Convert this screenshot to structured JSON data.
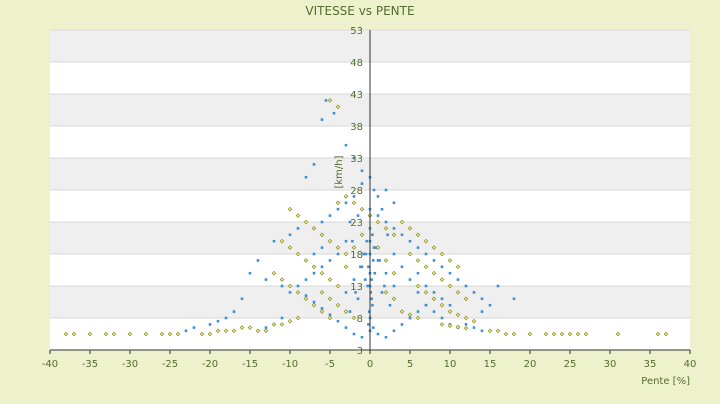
{
  "chart_data": {
    "type": "scatter",
    "title": "VITESSE vs PENTE",
    "xlabel": "Pente [%]",
    "ylabel": "[km/h]",
    "xlim": [
      -40,
      40
    ],
    "ylim": [
      3,
      53
    ],
    "x_ticks": [
      -40,
      -35,
      -30,
      -25,
      -20,
      -15,
      -10,
      -5,
      0,
      5,
      10,
      15,
      20,
      25,
      30,
      35,
      40
    ],
    "y_ticks": [
      3,
      8,
      13,
      18,
      23,
      28,
      33,
      38,
      43,
      48,
      53
    ],
    "grid": true,
    "legend": "none",
    "colors": {
      "background": "#eef2cc",
      "band_light": "#ffffff",
      "band_dark": "#efefef",
      "series_blue": "#3b8fd6",
      "series_olive": "#8a8a1a",
      "text": "#556b2f",
      "axis": "#333333"
    },
    "series": [
      {
        "color": "#3b8fd6",
        "marker": "dot",
        "points": [
          [
            -5.5,
            42
          ],
          [
            -4.5,
            40
          ],
          [
            -6,
            39
          ],
          [
            -3,
            35
          ],
          [
            -2,
            33
          ],
          [
            -1,
            31
          ],
          [
            0,
            30
          ],
          [
            -7,
            32
          ],
          [
            -8,
            30
          ],
          [
            -1,
            29
          ],
          [
            0.5,
            28
          ],
          [
            1,
            27
          ],
          [
            -2,
            27
          ],
          [
            -3,
            26
          ],
          [
            -4,
            25
          ],
          [
            -5,
            24
          ],
          [
            -6,
            23
          ],
          [
            -7,
            22
          ],
          [
            -9,
            22
          ],
          [
            -10,
            21
          ],
          [
            -12,
            20
          ],
          [
            -14,
            17
          ],
          [
            -15,
            15
          ],
          [
            -13,
            14
          ],
          [
            -11,
            13
          ],
          [
            -16,
            11
          ],
          [
            -17,
            9
          ],
          [
            -18,
            8
          ],
          [
            -19,
            7.5
          ],
          [
            -20,
            7
          ],
          [
            -22,
            6.5
          ],
          [
            -23,
            6
          ],
          [
            0,
            25
          ],
          [
            1,
            24
          ],
          [
            2,
            23
          ],
          [
            3,
            22
          ],
          [
            4,
            21
          ],
          [
            5,
            20
          ],
          [
            6,
            19
          ],
          [
            7,
            18
          ],
          [
            8,
            17
          ],
          [
            9,
            16
          ],
          [
            10,
            15
          ],
          [
            11,
            14
          ],
          [
            12,
            13
          ],
          [
            13,
            12
          ],
          [
            14,
            11
          ],
          [
            15,
            10
          ],
          [
            16,
            13
          ],
          [
            18,
            11
          ],
          [
            14,
            9
          ],
          [
            0,
            20
          ],
          [
            0.5,
            19
          ],
          [
            -0.5,
            18
          ],
          [
            1,
            17
          ],
          [
            -1,
            16
          ],
          [
            2,
            15
          ],
          [
            -2,
            14
          ],
          [
            3,
            13
          ],
          [
            -3,
            12
          ],
          [
            0,
            15
          ],
          [
            0.2,
            14
          ],
          [
            -0.3,
            13
          ],
          [
            1.5,
            12
          ],
          [
            -1.5,
            11
          ],
          [
            2.5,
            10
          ],
          [
            -2.5,
            9
          ],
          [
            0,
            8
          ],
          [
            0,
            6
          ],
          [
            1,
            5.5
          ],
          [
            -1,
            5
          ],
          [
            2,
            5
          ],
          [
            -2,
            5.5
          ],
          [
            3,
            6
          ],
          [
            -3,
            6.5
          ],
          [
            4,
            7
          ],
          [
            -4,
            7.5
          ],
          [
            5,
            8
          ],
          [
            -5,
            8.5
          ],
          [
            6,
            9
          ],
          [
            -6,
            9.5
          ],
          [
            7,
            10
          ],
          [
            -7,
            10.5
          ],
          [
            8,
            11
          ],
          [
            -8,
            11.5
          ],
          [
            0,
            22
          ],
          [
            0.3,
            21
          ],
          [
            -0.4,
            20
          ],
          [
            0.8,
            19
          ],
          [
            -0.8,
            18
          ],
          [
            1.2,
            17
          ],
          [
            -1.2,
            16
          ],
          [
            0,
            18
          ],
          [
            0.4,
            17
          ],
          [
            -0.2,
            16
          ],
          [
            0.6,
            15
          ],
          [
            -0.6,
            14
          ],
          [
            1.8,
            13
          ],
          [
            -1.8,
            12
          ],
          [
            3,
            18
          ],
          [
            4,
            16
          ],
          [
            5,
            14
          ],
          [
            6,
            12
          ],
          [
            7,
            10
          ],
          [
            8,
            9
          ],
          [
            9,
            8
          ],
          [
            10,
            7
          ],
          [
            11,
            6.5
          ],
          [
            -3,
            20
          ],
          [
            -4,
            18
          ],
          [
            -5,
            17
          ],
          [
            -6,
            16
          ],
          [
            -7,
            15
          ],
          [
            -8,
            14
          ],
          [
            -9,
            13
          ],
          [
            -10,
            12
          ],
          [
            2,
            28
          ],
          [
            3,
            26
          ],
          [
            1.5,
            25
          ],
          [
            -1.5,
            24
          ],
          [
            -2.5,
            23
          ],
          [
            2.2,
            21
          ],
          [
            -2.2,
            20
          ],
          [
            0,
            13
          ],
          [
            0.1,
            12
          ],
          [
            0.2,
            11
          ],
          [
            0.3,
            10
          ],
          [
            -0.1,
            9
          ],
          [
            -0.2,
            7
          ],
          [
            0.4,
            6.5
          ],
          [
            12,
            7
          ],
          [
            13,
            6.5
          ],
          [
            14,
            6
          ],
          [
            -11,
            8
          ],
          [
            -12,
            7
          ],
          [
            -13,
            6.5
          ],
          [
            -14,
            6
          ],
          [
            6,
            15
          ],
          [
            7,
            13
          ],
          [
            8,
            12
          ],
          [
            -6,
            19
          ],
          [
            -7,
            18
          ],
          [
            -8,
            17
          ],
          [
            9,
            11
          ],
          [
            10,
            10
          ]
        ]
      },
      {
        "color": "#8a8a1a",
        "marker": "diamond",
        "points": [
          [
            -5,
            42
          ],
          [
            -4,
            41
          ],
          [
            -38,
            5.5
          ],
          [
            -37,
            5.5
          ],
          [
            -35,
            5.5
          ],
          [
            -33,
            5.5
          ],
          [
            -32,
            5.5
          ],
          [
            -30,
            5.5
          ],
          [
            -28,
            5.5
          ],
          [
            -26,
            5.5
          ],
          [
            -25,
            5.5
          ],
          [
            -24,
            5.5
          ],
          [
            -21,
            5.5
          ],
          [
            -20,
            5.5
          ],
          [
            -19,
            6
          ],
          [
            -18,
            6
          ],
          [
            -17,
            6
          ],
          [
            -16,
            6.5
          ],
          [
            -15,
            6.5
          ],
          [
            -14,
            6
          ],
          [
            -13,
            6
          ],
          [
            37,
            5.5
          ],
          [
            36,
            5.5
          ],
          [
            31,
            5.5
          ],
          [
            27,
            5.5
          ],
          [
            26,
            5.5
          ],
          [
            25,
            5.5
          ],
          [
            24,
            5.5
          ],
          [
            23,
            5.5
          ],
          [
            22,
            5.5
          ],
          [
            20,
            5.5
          ],
          [
            18,
            5.5
          ],
          [
            17,
            5.5
          ],
          [
            16,
            6
          ],
          [
            15,
            6
          ],
          [
            -10,
            25
          ],
          [
            -9,
            24
          ],
          [
            -8,
            23
          ],
          [
            -7,
            22
          ],
          [
            -6,
            21
          ],
          [
            -5,
            20
          ],
          [
            -4,
            19
          ],
          [
            -3,
            18
          ],
          [
            -11,
            20
          ],
          [
            -10,
            19
          ],
          [
            -9,
            18
          ],
          [
            -8,
            17
          ],
          [
            -7,
            16
          ],
          [
            -6,
            15
          ],
          [
            -5,
            14
          ],
          [
            -4,
            13
          ],
          [
            -12,
            15
          ],
          [
            -11,
            14
          ],
          [
            -10,
            13
          ],
          [
            -9,
            12
          ],
          [
            -8,
            11
          ],
          [
            -7,
            10
          ],
          [
            -6,
            9
          ],
          [
            -5,
            8
          ],
          [
            4,
            23
          ],
          [
            5,
            22
          ],
          [
            6,
            21
          ],
          [
            7,
            20
          ],
          [
            8,
            19
          ],
          [
            9,
            18
          ],
          [
            10,
            17
          ],
          [
            11,
            16
          ],
          [
            5,
            18
          ],
          [
            6,
            17
          ],
          [
            7,
            16
          ],
          [
            8,
            15
          ],
          [
            9,
            14
          ],
          [
            10,
            13
          ],
          [
            11,
            12
          ],
          [
            12,
            11
          ],
          [
            6,
            13
          ],
          [
            7,
            12
          ],
          [
            8,
            11
          ],
          [
            9,
            10
          ],
          [
            10,
            9
          ],
          [
            11,
            8.5
          ],
          [
            12,
            8
          ],
          [
            13,
            7.5
          ],
          [
            -2,
            26
          ],
          [
            -1,
            25
          ],
          [
            0,
            24
          ],
          [
            1,
            23
          ],
          [
            2,
            22
          ],
          [
            3,
            21
          ],
          [
            -3,
            27
          ],
          [
            -4,
            26
          ],
          [
            -6,
            12
          ],
          [
            -5,
            11
          ],
          [
            -4,
            10
          ],
          [
            -3,
            9
          ],
          [
            -2,
            8
          ],
          [
            4,
            9
          ],
          [
            5,
            8.5
          ],
          [
            6,
            8
          ],
          [
            -9,
            8
          ],
          [
            -10,
            7.5
          ],
          [
            -11,
            7
          ],
          [
            -12,
            7
          ],
          [
            9,
            7
          ],
          [
            10,
            6.8
          ],
          [
            11,
            6.6
          ],
          [
            12,
            6.4
          ],
          [
            1,
            19
          ],
          [
            2,
            17
          ],
          [
            3,
            15
          ],
          [
            -1,
            21
          ],
          [
            -2,
            19
          ],
          [
            -3,
            16
          ],
          [
            2,
            12
          ],
          [
            3,
            11
          ]
        ]
      }
    ]
  }
}
